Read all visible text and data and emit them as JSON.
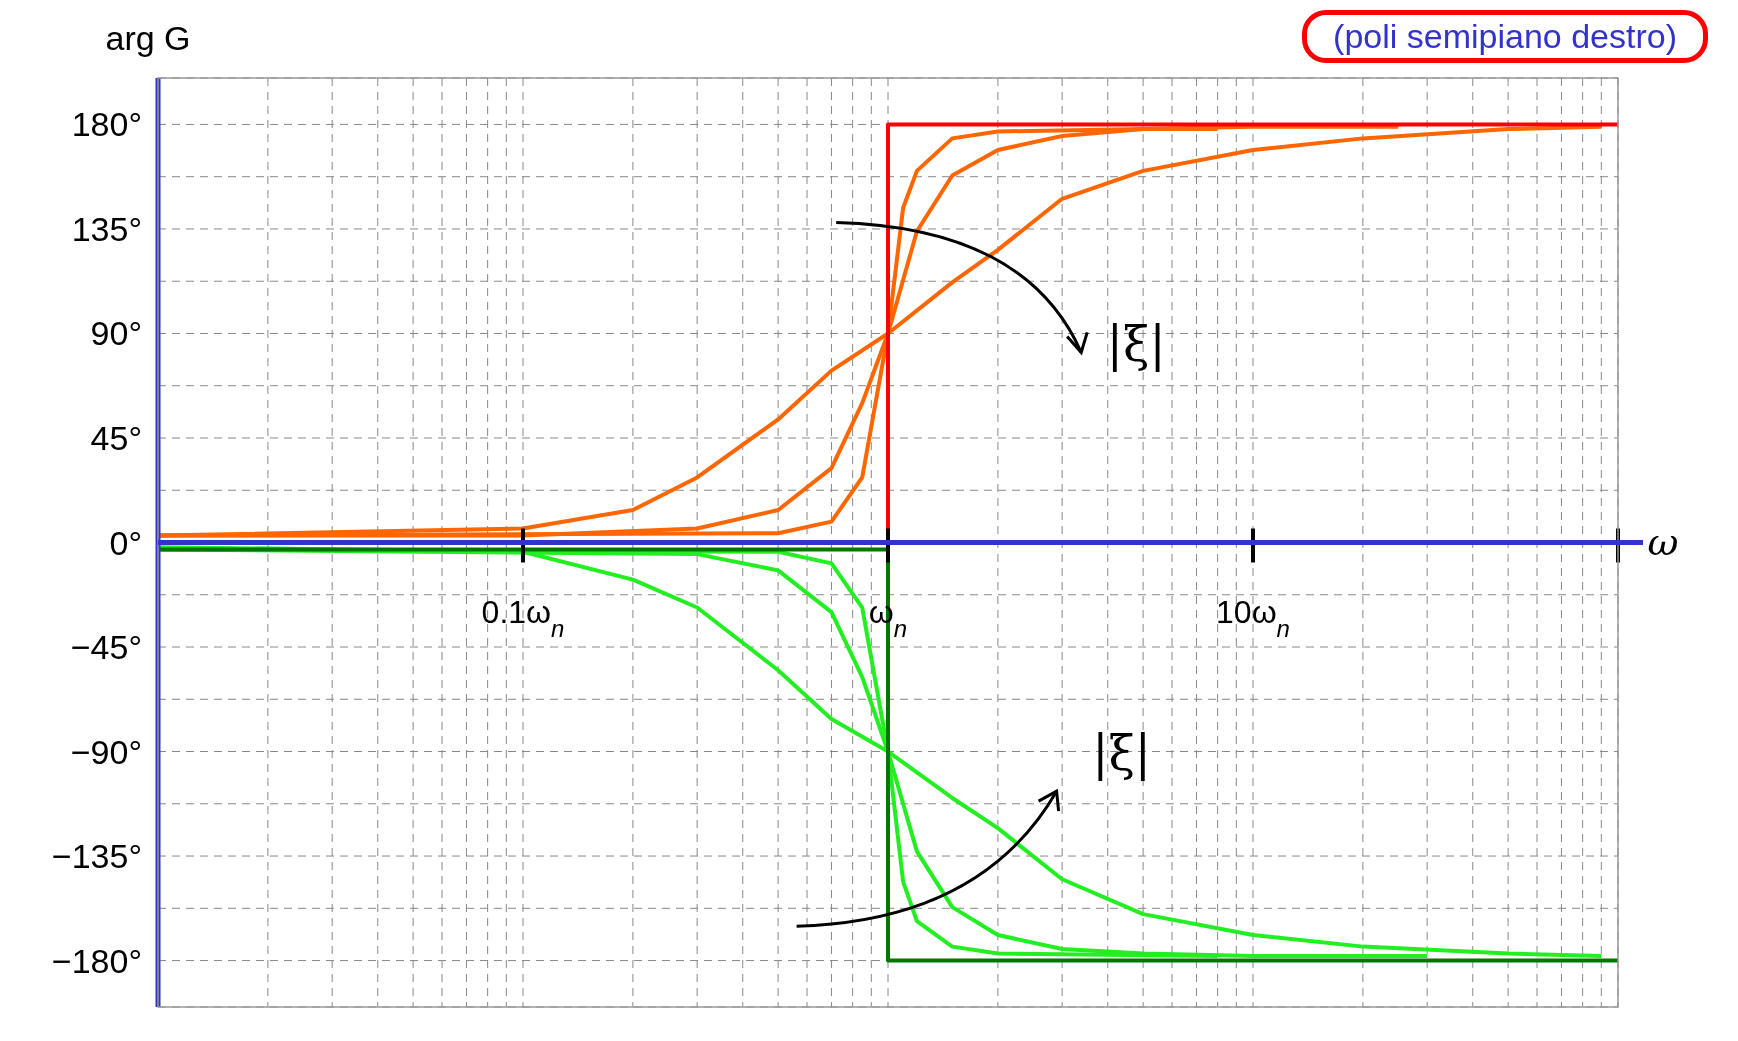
{
  "chart_data": {
    "type": "line",
    "ylabel": "arg G",
    "xlabel": "ω",
    "log": "x",
    "grid": true,
    "legend": false,
    "line_style": "solid",
    "marker": "none",
    "xlim": [
      0.01,
      100
    ],
    "xticks": [
      {
        "value": 0.01,
        "label": null
      },
      {
        "value": 0.02,
        "label": null
      },
      {
        "value": 0.03,
        "label": null
      },
      {
        "value": 0.04,
        "label": null
      },
      {
        "value": 0.05,
        "label": null
      },
      {
        "value": 0.06,
        "label": null
      },
      {
        "value": 0.07,
        "label": null
      },
      {
        "value": 0.08,
        "label": null
      },
      {
        "value": 0.09,
        "label": null
      },
      {
        "value": 0.1,
        "label": "0.1ω$_{n}$"
      },
      {
        "value": 0.2,
        "label": null
      },
      {
        "value": 0.3,
        "label": null
      },
      {
        "value": 0.4,
        "label": null
      },
      {
        "value": 0.5,
        "label": null
      },
      {
        "value": 0.6,
        "label": null
      },
      {
        "value": 0.7,
        "label": null
      },
      {
        "value": 0.8,
        "label": null
      },
      {
        "value": 0.9,
        "label": null
      },
      {
        "value": 1,
        "label": "ω$_{n}$"
      },
      {
        "value": 2,
        "label": null
      },
      {
        "value": 3,
        "label": null
      },
      {
        "value": 4,
        "label": null
      },
      {
        "value": 5,
        "label": null
      },
      {
        "value": 6,
        "label": null
      },
      {
        "value": 7,
        "label": null
      },
      {
        "value": 8,
        "label": null
      },
      {
        "value": 9,
        "label": null
      },
      {
        "value": 10,
        "label": "10ω$_{n}$"
      },
      {
        "value": 20,
        "label": null
      },
      {
        "value": 30,
        "label": null
      },
      {
        "value": 40,
        "label": null
      },
      {
        "value": 50,
        "label": null
      },
      {
        "value": 60,
        "label": null
      },
      {
        "value": 70,
        "label": null
      },
      {
        "value": 80,
        "label": null
      },
      {
        "value": 90,
        "label": null
      },
      {
        "value": 100,
        "label": null
      }
    ],
    "ylim": [
      -200,
      200
    ],
    "yticks": [
      {
        "value": -180,
        "label": "−180°"
      },
      {
        "value": -157.5,
        "label": null
      },
      {
        "value": -135,
        "label": "−135°"
      },
      {
        "value": -112.5,
        "label": null
      },
      {
        "value": -90,
        "label": "−90°"
      },
      {
        "value": -67.5,
        "label": null
      },
      {
        "value": -45,
        "label": "−45°"
      },
      {
        "value": -22.5,
        "label": null
      },
      {
        "value": 0,
        "label": "0°"
      },
      {
        "value": 22.5,
        "label": null
      },
      {
        "value": 45,
        "label": "45°"
      },
      {
        "value": 67.5,
        "label": null
      },
      {
        "value": 90,
        "label": "90°"
      },
      {
        "value": 112.5,
        "label": null
      },
      {
        "value": 135,
        "label": "135°"
      },
      {
        "value": 157.5,
        "label": null
      },
      {
        "value": 180,
        "label": "180°"
      }
    ],
    "series": [
      {
        "color": "#ff6600",
        "x": [
          0.01,
          0.1,
          0.2,
          0.3,
          0.5,
          0.7,
          1,
          1.5,
          2,
          3,
          5,
          10,
          20,
          50,
          90
        ],
        "values": [
          3,
          6,
          14,
          28,
          53,
          74,
          90,
          112,
          126,
          148,
          160,
          169,
          174,
          178,
          179
        ]
      },
      {
        "color": "#ff6600",
        "x": [
          0.01,
          0.1,
          0.3,
          0.5,
          0.7,
          0.85,
          1,
          1.2,
          1.5,
          2,
          3,
          5,
          10,
          25
        ],
        "values": [
          3,
          3,
          6,
          14,
          32,
          60,
          90,
          134,
          158,
          169,
          175,
          178,
          179,
          179
        ]
      },
      {
        "color": "#ff6600",
        "x": [
          0.01,
          0.5,
          0.7,
          0.85,
          1,
          1.1,
          1.2,
          1.5,
          2,
          5,
          8
        ],
        "values": [
          3,
          4,
          9,
          28,
          90,
          144,
          160,
          174,
          177,
          178,
          178
        ]
      },
      {
        "color": "#ff0000",
        "x": [
          0.01,
          1,
          1,
          100
        ],
        "values": [
          0,
          0,
          180,
          180
        ]
      },
      {
        "color": "#22ee22",
        "x": [
          0.01,
          0.1,
          0.2,
          0.3,
          0.5,
          0.7,
          1,
          1.5,
          2,
          3,
          5,
          10,
          20,
          50,
          90
        ],
        "values": [
          -2,
          -4,
          -16,
          -28,
          -55,
          -76,
          -90,
          -110,
          -123,
          -145,
          -160,
          -169,
          -174,
          -177,
          -178
        ]
      },
      {
        "color": "#22ee22",
        "x": [
          0.01,
          0.3,
          0.5,
          0.7,
          0.85,
          1,
          1.2,
          1.5,
          2,
          3,
          5,
          10,
          30
        ],
        "values": [
          -3,
          -5,
          -12,
          -30,
          -58,
          -90,
          -133,
          -157,
          -169,
          -175,
          -177,
          -178,
          -178
        ]
      },
      {
        "color": "#22ee22",
        "x": [
          0.01,
          0.5,
          0.7,
          0.85,
          1,
          1.1,
          1.2,
          1.5,
          2,
          8
        ],
        "values": [
          -3,
          -4,
          -9,
          -28,
          -90,
          -146,
          -163,
          -174,
          -177,
          -178
        ]
      },
      {
        "color": "#007700",
        "x": [
          0.01,
          1,
          1,
          100
        ],
        "values": [
          -3,
          -3,
          -180,
          -180
        ]
      }
    ],
    "annotations": [
      "(poli semipiano destro)",
      "|ξ|",
      "|ξ|"
    ]
  }
}
